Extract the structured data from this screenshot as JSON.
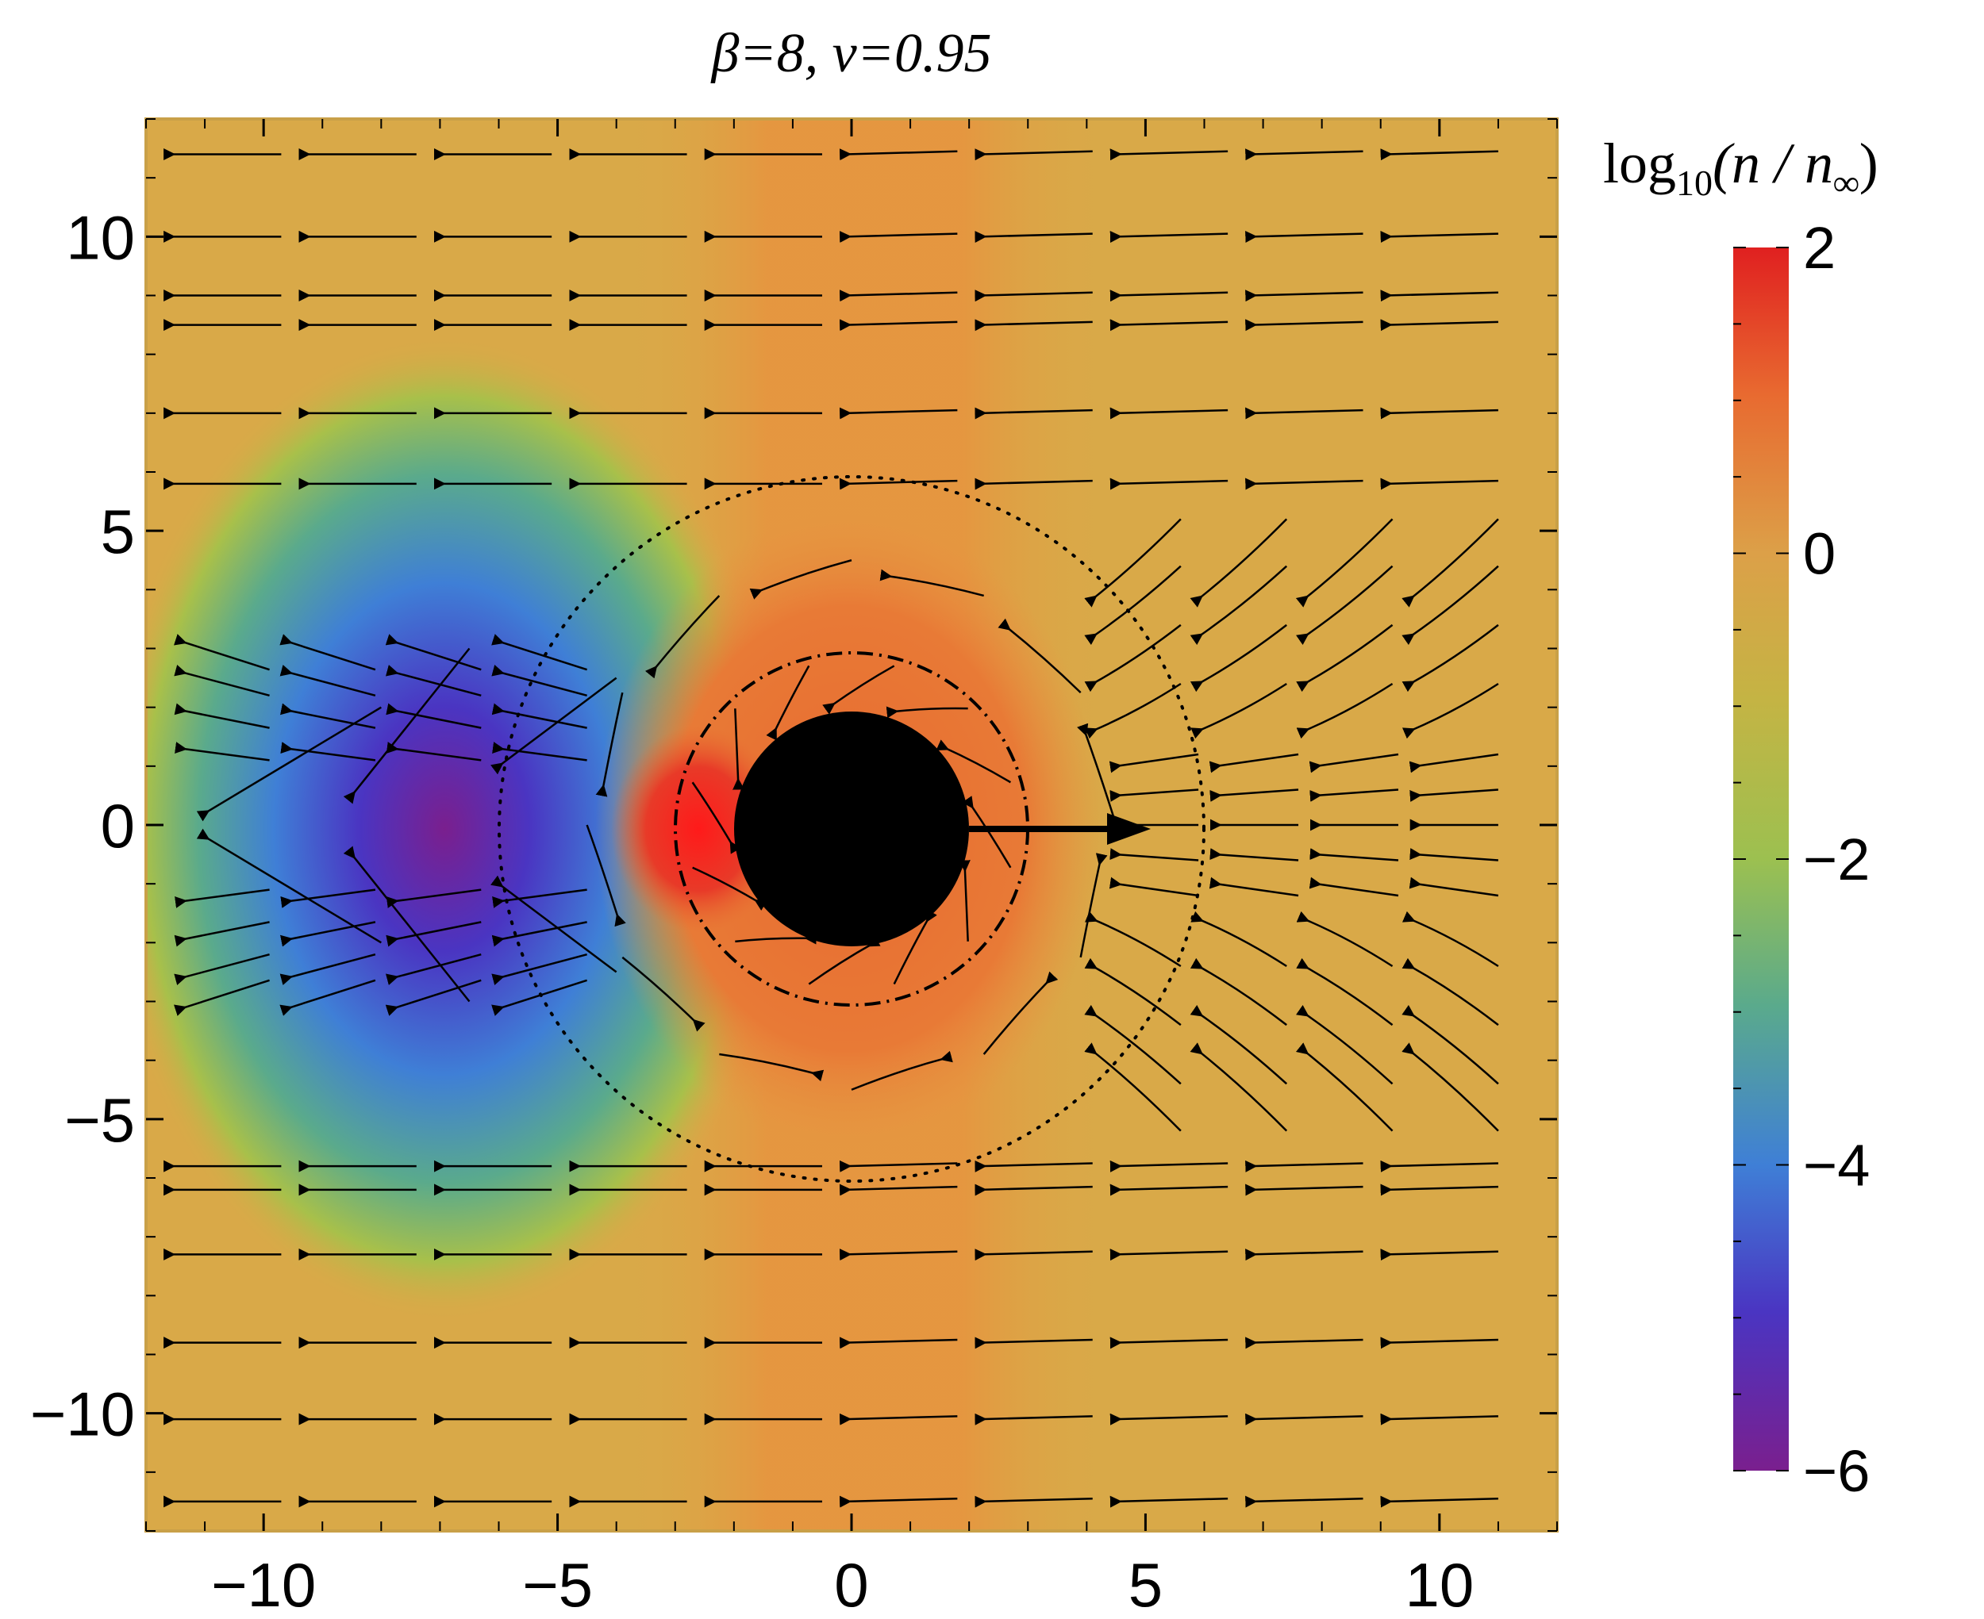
{
  "chart_data": {
    "type": "heatmap",
    "title": "β=8, v=0.95",
    "xlabel": "",
    "ylabel": "",
    "xlim": [
      -12,
      12
    ],
    "ylim": [
      -12,
      12
    ],
    "xticks": [
      -10,
      -5,
      0,
      5,
      10
    ],
    "yticks": [
      -10,
      -5,
      0,
      5,
      10
    ],
    "xtick_labels": [
      "−10",
      "−5",
      "0",
      "5",
      "10"
    ],
    "ytick_labels": [
      "−10",
      "−5",
      "0",
      "5",
      "10"
    ],
    "grid": false,
    "colorbar": {
      "label_main": "log",
      "label_sub": "10",
      "label_rest": "(n / n",
      "label_inf": "∞",
      "label_close": ")",
      "range": [
        -6,
        2
      ],
      "ticks": [
        2,
        0,
        -2,
        -4,
        -6
      ],
      "tick_labels": [
        "2",
        "0",
        "−2",
        "−4",
        "−6"
      ],
      "colors": [
        "#7a1f8e",
        "#4a35c2",
        "#3f7fd6",
        "#5aaa8c",
        "#a8c04a",
        "#d8aa48",
        "#e89040",
        "#e86a30",
        "#e02020"
      ]
    },
    "field_description": "log10 density ratio with streamlines of flow past a black hole moving in +x direction",
    "black_hole_radius": 2,
    "velocity_arrow": {
      "from": [
        0,
        0
      ],
      "to": [
        5,
        0
      ]
    },
    "dotted_circle_radius": 6,
    "dashdot_circle_radius": 3,
    "low_density_region_center": [
      -7.5,
      0
    ],
    "low_density_min": -6,
    "high_density_peak": [
      -3,
      0
    ],
    "high_density_max": 2
  }
}
